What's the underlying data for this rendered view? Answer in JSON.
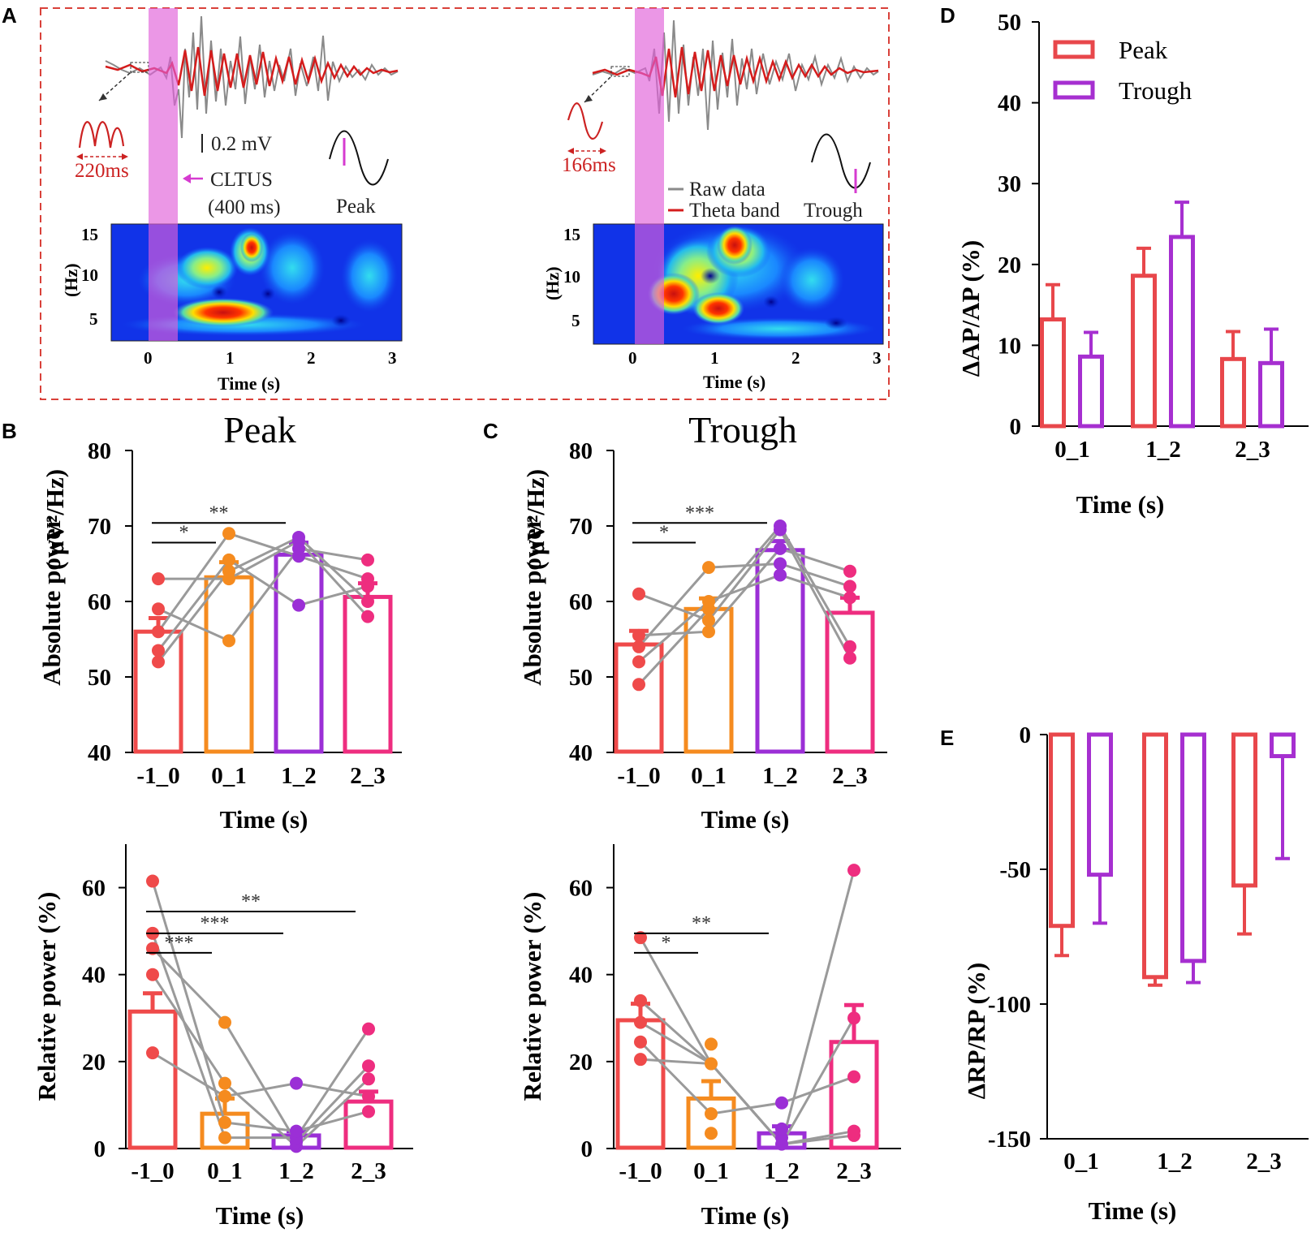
{
  "panel_letters": [
    "A",
    "B",
    "C",
    "D",
    "E"
  ],
  "colors": {
    "c1": "#ef4a4a",
    "c2": "#f58b1f",
    "c3": "#9b2fd6",
    "c4": "#ee2d7f",
    "grey": "#9a9a9a",
    "peak": "#e8474b",
    "trough": "#a62fd0",
    "cltus": "#e060d8",
    "dash": "#d9413a"
  },
  "panel_a": {
    "left": {
      "interval_label": "220ms",
      "scale_label": "0.2 mV",
      "cltus_label": "CLTUS",
      "duration_label": "(400 ms)",
      "phase_label": "Peak",
      "y_unit": "(Hz)",
      "y_ticks": [
        "15",
        "10",
        "5"
      ],
      "x_ticks": [
        "0",
        "1",
        "2",
        "3"
      ],
      "xlabel": "Time (s)"
    },
    "right": {
      "interval_label": "166ms",
      "legend_raw": "Raw data",
      "legend_theta": "Theta band",
      "phase_label": "Trough",
      "y_unit": "(Hz)",
      "y_ticks": [
        "15",
        "10",
        "5"
      ],
      "x_ticks": [
        "0",
        "1",
        "2",
        "3"
      ],
      "xlabel": "Time (s)"
    }
  },
  "chart_data": [
    {
      "id": "B_abs",
      "panel": "B",
      "type": "bar",
      "title": "Peak",
      "xlabel": "Time (s)",
      "ylabel": "Absolute power",
      "yunit": "( μV²/Hz)",
      "categories": [
        "-1_0",
        "0_1",
        "1_2",
        "2_3"
      ],
      "values": [
        56,
        63.2,
        66.2,
        60.6
      ],
      "errors": [
        1.8,
        2.0,
        1.6,
        1.8
      ],
      "ylim": [
        40,
        80
      ],
      "yticks": [
        40,
        50,
        60,
        70,
        80
      ],
      "subjects": [
        [
          52,
          53.5,
          56,
          59,
          63
        ],
        [
          54.8,
          63,
          64,
          65.5,
          69
        ],
        [
          59.5,
          66,
          67,
          68,
          68.5
        ],
        [
          58,
          60,
          62,
          63,
          65.5
        ]
      ],
      "sig": [
        {
          "from": 0,
          "to": 1,
          "label": "*",
          "at": 67.8
        },
        {
          "from": 0,
          "to": 2,
          "label": "**",
          "at": 70.4
        }
      ]
    },
    {
      "id": "C_abs",
      "panel": "C",
      "type": "bar",
      "title": "Trough",
      "xlabel": "Time (s)",
      "ylabel": "Absolute power",
      "yunit": "( μV²/Hz)",
      "categories": [
        "-1_0",
        "0_1",
        "1_2",
        "2_3"
      ],
      "values": [
        54.3,
        59,
        66.8,
        58.5
      ],
      "errors": [
        1.8,
        1.4,
        1.2,
        2.0
      ],
      "ylim": [
        40,
        80
      ],
      "yticks": [
        40,
        50,
        60,
        70,
        80
      ],
      "subjects": [
        [
          49,
          52,
          54,
          55.5,
          61
        ],
        [
          56,
          57.5,
          59,
          60,
          64.5
        ],
        [
          63.5,
          65,
          67,
          69.5,
          70
        ],
        [
          52.5,
          54,
          60.5,
          62,
          64
        ]
      ],
      "sig": [
        {
          "from": 0,
          "to": 1,
          "label": "*",
          "at": 67.8
        },
        {
          "from": 0,
          "to": 2,
          "label": "***",
          "at": 70.4
        }
      ]
    },
    {
      "id": "B_rel",
      "panel": "B",
      "type": "bar",
      "xlabel": "Time (s)",
      "ylabel": "Relative power (%)",
      "categories": [
        "-1_0",
        "0_1",
        "1_2",
        "2_3"
      ],
      "values": [
        31.5,
        8,
        3,
        10.8
      ],
      "errors": [
        4.2,
        3.5,
        1.0,
        2.3
      ],
      "ylim": [
        0,
        70
      ],
      "yticks": [
        0,
        20,
        40,
        60
      ],
      "subjects": [
        [
          22,
          40,
          46,
          49.5,
          61.5
        ],
        [
          2.5,
          6,
          12,
          15,
          29
        ],
        [
          0.5,
          1.5,
          2.5,
          4,
          15
        ],
        [
          8.5,
          12,
          16,
          19,
          27.5
        ]
      ],
      "sig": [
        {
          "from": 0,
          "to": 1,
          "label": "***",
          "at": 45
        },
        {
          "from": 0,
          "to": 2,
          "label": "***",
          "at": 49.5
        },
        {
          "from": 0,
          "to": 3,
          "label": "**",
          "at": 54.5
        }
      ]
    },
    {
      "id": "C_rel",
      "panel": "C",
      "type": "bar",
      "xlabel": "Time (s)",
      "ylabel": "Relative power (%)",
      "categories": [
        "-1_0",
        "0_1",
        "1_2",
        "2_3"
      ],
      "values": [
        29.5,
        11.5,
        3.5,
        24.5
      ],
      "errors": [
        3.8,
        4.0,
        1.6,
        8.5
      ],
      "ylim": [
        0,
        70
      ],
      "yticks": [
        0,
        20,
        40,
        60
      ],
      "subjects": [
        [
          20.5,
          24.5,
          29,
          34,
          48.5
        ],
        [
          3.5,
          8,
          19.5,
          24
        ],
        [
          1,
          2.5,
          4.5,
          10.5
        ],
        [
          3,
          4,
          16.5,
          30,
          64
        ]
      ],
      "sig": [
        {
          "from": 0,
          "to": 1,
          "label": "*",
          "at": 45
        },
        {
          "from": 0,
          "to": 2,
          "label": "**",
          "at": 49.5
        }
      ]
    },
    {
      "id": "D",
      "panel": "D",
      "type": "bar",
      "xlabel": "Time (s)",
      "ylabel": "ΔAP/AP (%)",
      "categories": [
        "0_1",
        "1_2",
        "2_3"
      ],
      "series": [
        {
          "name": "Peak",
          "values": [
            13.2,
            18.6,
            8.3
          ],
          "errors": [
            4.3,
            3.4,
            3.4
          ]
        },
        {
          "name": "Trough",
          "values": [
            8.6,
            23.4,
            7.8
          ],
          "errors": [
            3.0,
            4.3,
            4.2
          ]
        }
      ],
      "ylim": [
        0,
        50
      ],
      "yticks": [
        0,
        10,
        20,
        30,
        40,
        50
      ],
      "legend": "top-left"
    },
    {
      "id": "E",
      "panel": "E",
      "type": "bar",
      "xlabel": "Time (s)",
      "ylabel": "ΔRP/RP (%)",
      "categories": [
        "0_1",
        "1_2",
        "2_3"
      ],
      "series": [
        {
          "name": "Peak",
          "values": [
            -71,
            -90,
            -56
          ],
          "errors": [
            11,
            3,
            18
          ]
        },
        {
          "name": "Trough",
          "values": [
            -52,
            -84,
            -8
          ],
          "errors": [
            18,
            8,
            38
          ]
        }
      ],
      "ylim": [
        -150,
        0
      ],
      "yticks": [
        0,
        -50,
        -100,
        -150
      ]
    }
  ]
}
